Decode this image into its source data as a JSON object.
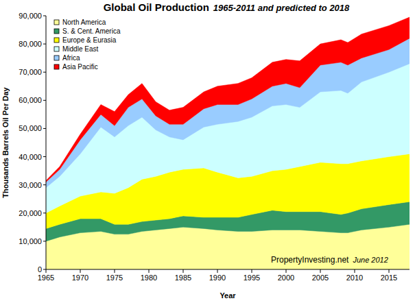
{
  "chart_data": {
    "type": "area",
    "stacked": true,
    "title": "Global Oil Production",
    "subtitle": "1965-2011 and predicted to 2018",
    "x_label": "Year",
    "y_label": "Thousands Barrels Oil Per Day",
    "annotations": [
      "PropertyInvesting.net",
      "June 2012"
    ],
    "x": [
      1965,
      1967,
      1970,
      1973,
      1975,
      1977,
      1979,
      1981,
      1983,
      1985,
      1988,
      1990,
      1993,
      1995,
      1998,
      2000,
      2002,
      2005,
      2008,
      2009,
      2011,
      2015,
      2018
    ],
    "series": [
      {
        "name": "North America",
        "color": "#ffff99",
        "values": [
          10000,
          11500,
          13000,
          13500,
          12500,
          12500,
          13500,
          14000,
          14500,
          15000,
          14500,
          14000,
          13500,
          13500,
          14000,
          14000,
          14000,
          13500,
          13000,
          13000,
          14000,
          15000,
          16000
        ]
      },
      {
        "name": "S. & Cent. America",
        "color": "#339966",
        "values": [
          4500,
          4500,
          5000,
          4500,
          3500,
          3500,
          3500,
          3500,
          3500,
          4000,
          4000,
          4500,
          5000,
          6000,
          7000,
          6500,
          6500,
          7000,
          6500,
          7000,
          7500,
          8000,
          8000
        ]
      },
      {
        "name": "Europe & Eurasia",
        "color": "#ffff00",
        "values": [
          5500,
          6500,
          8000,
          9500,
          11000,
          13000,
          15000,
          15500,
          16500,
          16500,
          17500,
          16000,
          14000,
          13500,
          14000,
          15000,
          16000,
          17500,
          18000,
          17500,
          17000,
          17000,
          17000
        ]
      },
      {
        "name": "Middle East",
        "color": "#ccffff",
        "values": [
          9000,
          10500,
          15000,
          23000,
          20000,
          22000,
          22000,
          16500,
          12500,
          10500,
          14500,
          17000,
          20000,
          21000,
          23000,
          23000,
          21000,
          25000,
          26000,
          25000,
          28000,
          30000,
          32000
        ]
      },
      {
        "name": "Africa",
        "color": "#99ccff",
        "values": [
          2000,
          2500,
          5000,
          4500,
          4000,
          6500,
          6500,
          5000,
          4500,
          5500,
          6500,
          7000,
          6000,
          6500,
          7000,
          7500,
          7000,
          9500,
          10000,
          10000,
          8500,
          8000,
          9000
        ]
      },
      {
        "name": "Asia Pacific",
        "color": "#ff0000",
        "values": [
          500,
          1000,
          2000,
          3500,
          5000,
          4500,
          5500,
          5000,
          5000,
          6000,
          6000,
          6500,
          7500,
          7500,
          8500,
          8500,
          9500,
          7500,
          8000,
          8000,
          8500,
          8500,
          7500
        ]
      }
    ],
    "xlim": [
      1965,
      2018
    ],
    "xticks": [
      1965,
      1970,
      1975,
      1980,
      1985,
      1990,
      1995,
      2000,
      2005,
      2010,
      2015
    ],
    "ylim": [
      0,
      90000
    ],
    "yticks": [
      0,
      {
        "value": 10000,
        "label": "10,000"
      },
      {
        "value": 20000,
        "label": "20,000"
      },
      {
        "value": 30000,
        "label": "30,000"
      },
      {
        "value": 40000,
        "label": "40,000"
      },
      {
        "value": 50000,
        "label": "50,000"
      },
      {
        "value": 60000,
        "label": "60,000"
      },
      {
        "value": 70000,
        "label": "70,000"
      },
      {
        "value": 80000,
        "label": "80,000"
      },
      {
        "value": 90000,
        "label": "90,000"
      }
    ],
    "grid": false,
    "legend": "upper left"
  }
}
